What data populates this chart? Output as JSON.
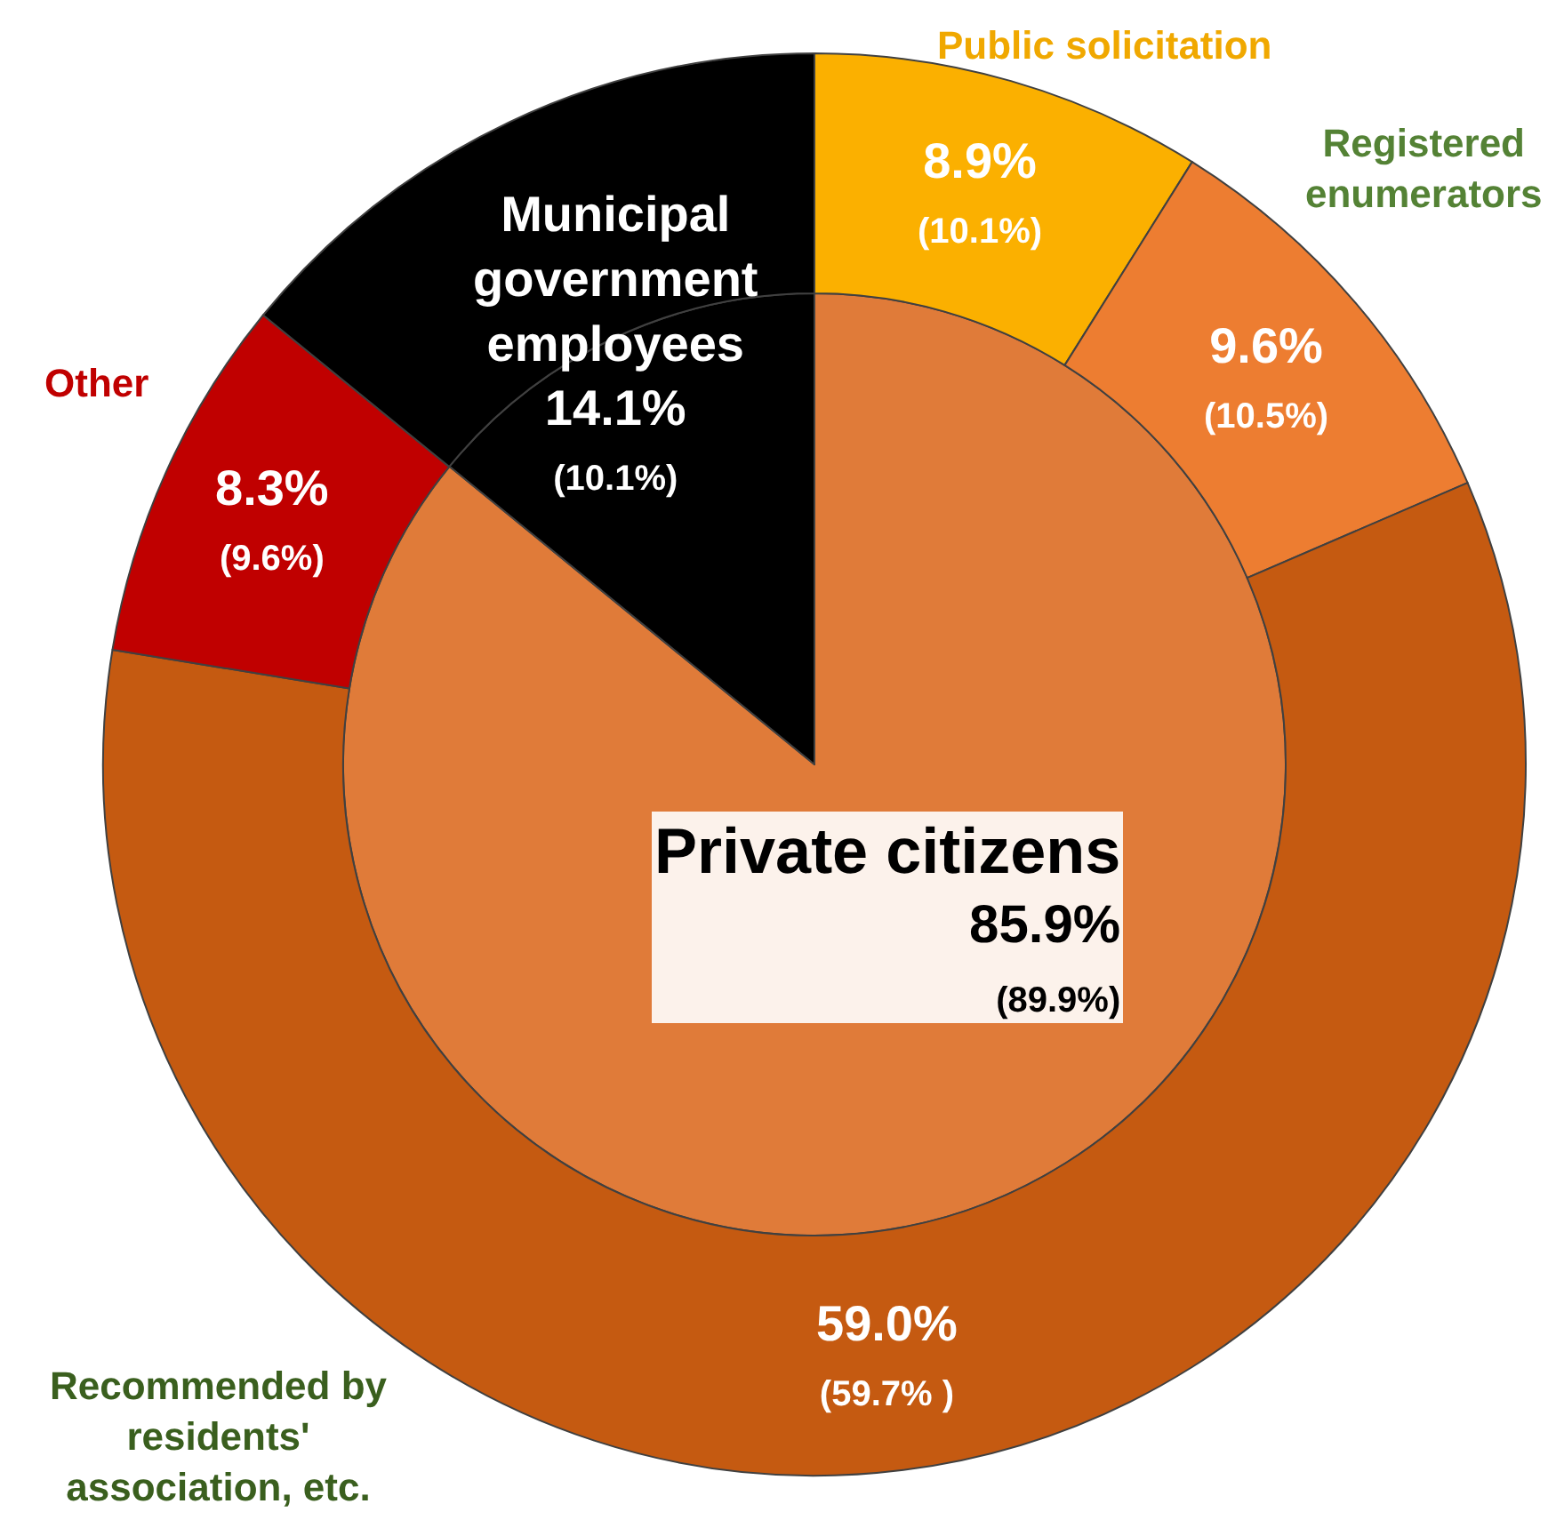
{
  "chart_data": [
    {
      "type": "pie",
      "categories": [
        "Private citizens",
        "Municipal government employees"
      ],
      "values": [
        85.9,
        14.1
      ],
      "colors": [
        "#e07b39",
        "#000000"
      ],
      "value_labels": [
        "85.9%\n(89.9%)",
        "14.1%\n(10.1%)"
      ]
    },
    {
      "type": "donut",
      "categories": [
        "Public solicitation",
        "Registered enumerators",
        "Recommended by residents' association, etc.",
        "Other",
        null
      ],
      "values": [
        8.9,
        9.6,
        59.0,
        8.3,
        14.1
      ],
      "colors": [
        "#fbb000",
        "#ed7d31",
        "#c55a11",
        "#c00000",
        "#000000"
      ],
      "value_labels": [
        "8.9%\n(10.1%)",
        "9.6%\n(10.5%)",
        "59.0%\n(59.7% )",
        "8.3%\n(9.6%)",
        null
      ]
    }
  ]
}
